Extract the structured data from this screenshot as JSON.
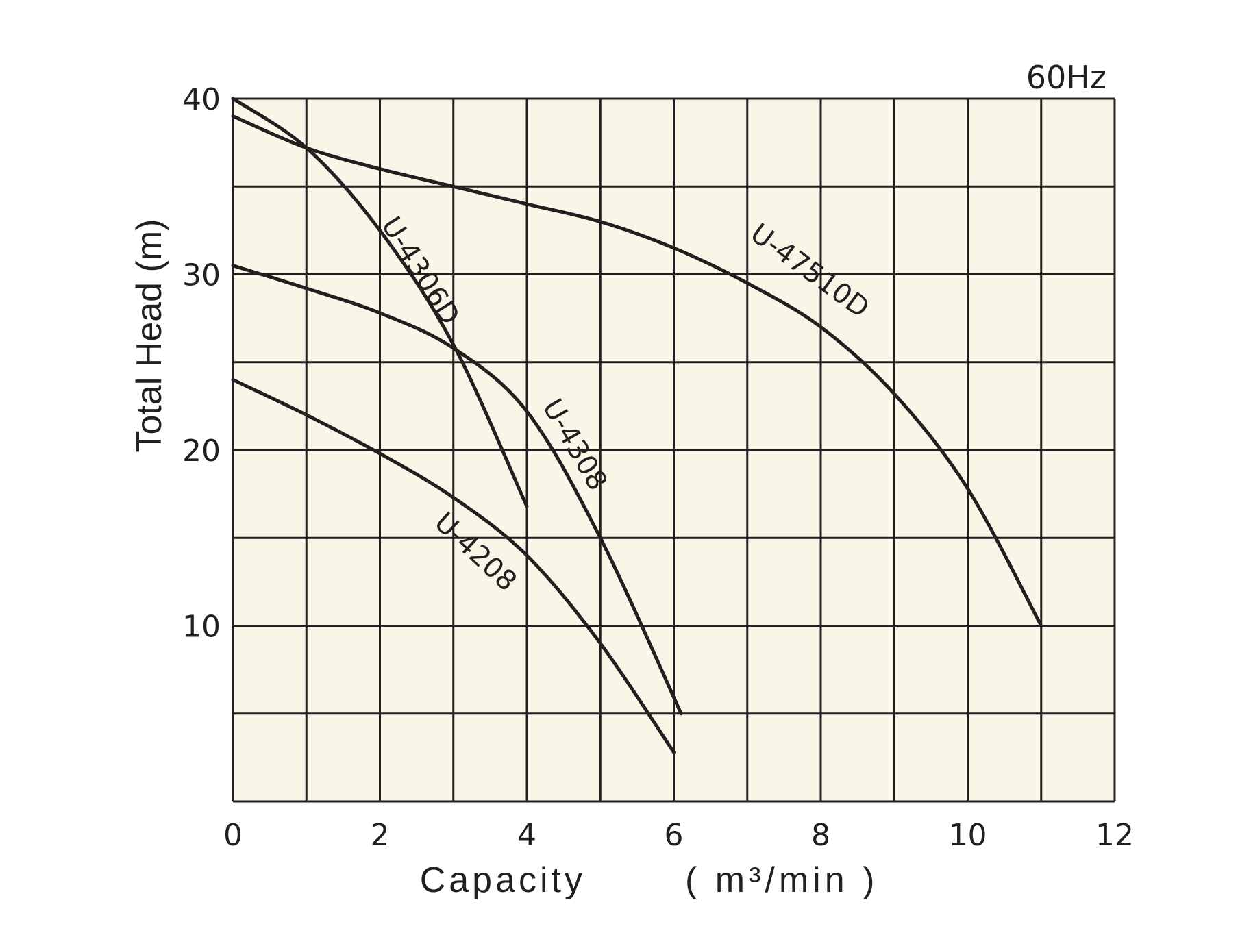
{
  "frequency": "60Hz",
  "colors": {
    "plot_background": "#f8f6e6",
    "ink": "#231f20"
  },
  "chart_data": {
    "type": "line",
    "xlabel": "Capacity",
    "xlabel_unit": "( m³/min )",
    "ylabel": "Total Head (m)",
    "xlim": [
      0,
      12
    ],
    "ylim": [
      0,
      40
    ],
    "x_ticks": [
      "0",
      "2",
      "4",
      "6",
      "8",
      "10",
      "12"
    ],
    "y_ticks": [
      "10",
      "20",
      "30",
      "40"
    ],
    "grid": true,
    "series": [
      {
        "name": "U-4306D",
        "points": [
          [
            0,
            40
          ],
          [
            1,
            37.2
          ],
          [
            2,
            32.5
          ],
          [
            3,
            26
          ],
          [
            4,
            16.8
          ]
        ]
      },
      {
        "name": "U-4308",
        "points": [
          [
            0,
            30.5
          ],
          [
            1,
            29.2
          ],
          [
            2,
            27.8
          ],
          [
            3,
            25.8
          ],
          [
            4,
            22.2
          ],
          [
            5,
            15
          ],
          [
            6.1,
            5
          ]
        ]
      },
      {
        "name": "U-4208",
        "points": [
          [
            0,
            24
          ],
          [
            1,
            22
          ],
          [
            2,
            19.8
          ],
          [
            3,
            17.3
          ],
          [
            4,
            14
          ],
          [
            5,
            9
          ],
          [
            6,
            2.8
          ]
        ]
      },
      {
        "name": "U-47510D",
        "points": [
          [
            0,
            39
          ],
          [
            1,
            37.2
          ],
          [
            2,
            36
          ],
          [
            3,
            35
          ],
          [
            4,
            34
          ],
          [
            5,
            33
          ],
          [
            6,
            31.5
          ],
          [
            7,
            29.5
          ],
          [
            8,
            27
          ],
          [
            9,
            23.2
          ],
          [
            10,
            17.8
          ],
          [
            11,
            10
          ]
        ]
      }
    ]
  }
}
